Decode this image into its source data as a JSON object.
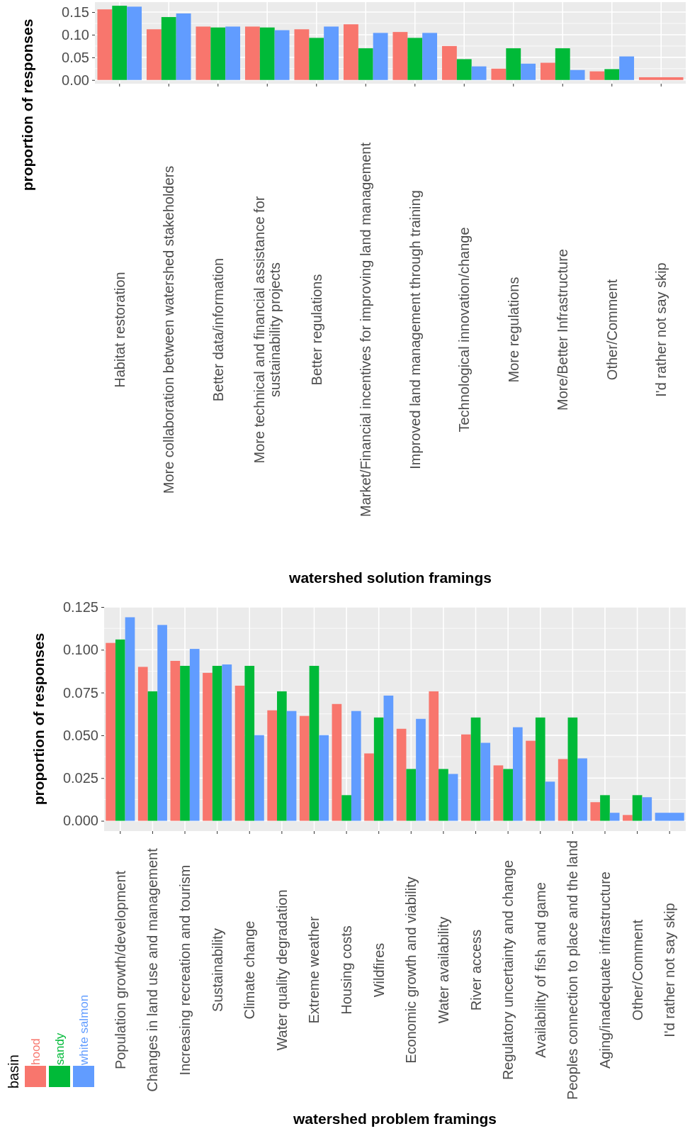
{
  "chart_data": [
    {
      "type": "bar",
      "xlabel": "watershed solution framings",
      "ylabel": "proportion of responses",
      "grid": true,
      "categories": [
        "Habitat restoration",
        "More collaboration between watershed stakeholders",
        "Better data/information",
        "More technical and financial assistance for\nsustainability projects",
        "Better regulations",
        "Market/Financial incentives for improving land management",
        "Improved land management through training",
        "Technological innovation/change",
        "More regulations",
        "More/Better Infrastructure",
        "Other/Comment",
        "I'd rather not say skip"
      ],
      "ylim": [
        -0.0082,
        0.172
      ],
      "yticks": [
        {
          "value": 0,
          "label": "0.00"
        },
        {
          "value": 0.05,
          "label": "0.05"
        },
        {
          "value": 0.1,
          "label": "0.10"
        },
        {
          "value": 0.15,
          "label": "0.15"
        }
      ],
      "series": [
        {
          "color": "#f8766d",
          "values": [
            0.156,
            0.112,
            0.118,
            0.118,
            0.112,
            0.123,
            0.106,
            0.075,
            0.025,
            0.038,
            0.019,
            0.006
          ]
        },
        {
          "color": "#00ba38",
          "values": [
            0.164,
            0.139,
            0.116,
            0.116,
            0.093,
            0.07,
            0.093,
            0.046,
            0.07,
            0.07,
            0.024,
            null
          ]
        },
        {
          "color": "#619cff",
          "values": [
            0.162,
            0.147,
            0.118,
            0.11,
            0.118,
            0.104,
            0.104,
            0.03,
            0.036,
            0.022,
            0.052,
            null
          ]
        }
      ]
    },
    {
      "type": "bar",
      "xlabel": "watershed problem framings",
      "ylabel": "proportion of responses",
      "grid": true,
      "legend": "bottom left",
      "legend_title": "basin",
      "categories": [
        "Population growth/development",
        "Changes in land use and management",
        "Increasing recreation and tourism",
        "Sustainability",
        "Climate change",
        "Water quality degradation",
        "Extreme weather",
        "Housing costs",
        "Wildfires",
        "Economic growth and viability",
        "Water availability",
        "River access",
        "Regulatory uncertainty and change",
        "Availability of fish and game",
        "Peoples connection to place and the land",
        "Aging/inadequate infrastructure",
        "Other/Comment",
        "I'd rather not say skip"
      ],
      "ylim": [
        -0.006,
        0.125
      ],
      "yticks": [
        {
          "value": 0,
          "label": "0.000"
        },
        {
          "value": 0.025,
          "label": "0.025"
        },
        {
          "value": 0.05,
          "label": "0.050"
        },
        {
          "value": 0.075,
          "label": "0.075"
        },
        {
          "value": 0.1,
          "label": "0.100"
        },
        {
          "value": 0.125,
          "label": "0.125"
        }
      ],
      "series": [
        {
          "name": "hood",
          "color": "#f8766d",
          "values": [
            0.104,
            0.09,
            0.0935,
            0.0865,
            0.079,
            0.0646,
            0.0613,
            0.0683,
            0.0394,
            0.0538,
            0.0757,
            0.0505,
            0.0324,
            0.0468,
            0.0361,
            0.0109,
            0.0034,
            null
          ]
        },
        {
          "name": "sandy",
          "color": "#00ba38",
          "values": [
            0.106,
            0.0757,
            0.0906,
            0.0906,
            0.0906,
            0.0757,
            0.0906,
            0.015,
            0.0604,
            0.0303,
            0.0303,
            0.0604,
            0.0303,
            0.0604,
            0.0604,
            0.015,
            0.015,
            null
          ]
        },
        {
          "name": "white salmon",
          "color": "#619cff",
          "values": [
            0.119,
            0.1145,
            0.1005,
            0.0914,
            0.0501,
            0.0642,
            0.0501,
            0.0642,
            0.0732,
            0.0596,
            0.0274,
            0.0456,
            0.0547,
            0.0229,
            0.0365,
            0.0047,
            0.0138,
            0.0047
          ]
        }
      ]
    }
  ]
}
